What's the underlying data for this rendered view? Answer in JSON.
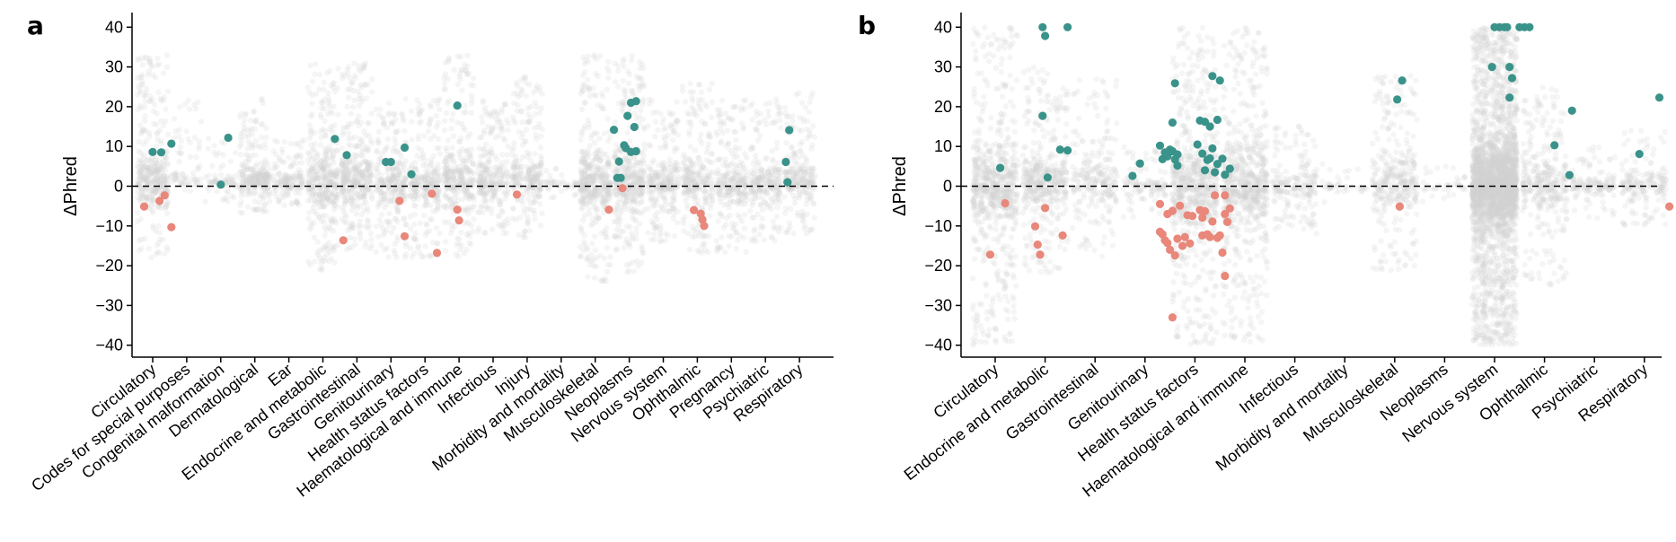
{
  "colors": {
    "background_points": "#d0d0d0",
    "positive": "#3a938a",
    "negative": "#e8877a",
    "zero_line": "#000000"
  },
  "chart_data": [
    {
      "panel": "a",
      "type": "scatter",
      "ylabel": "ΔPhred",
      "ylim": [
        -43,
        43
      ],
      "yticks": [
        -40,
        -30,
        -20,
        -10,
        0,
        10,
        20,
        30,
        40
      ],
      "zero_line": "dashed",
      "categories": [
        "Circulatory",
        "Codes for special purposes",
        "Congenital malformation",
        "Dermatological",
        "Ear",
        "Endocrine and metabolic",
        "Gastrointestinal",
        "Genitourinary",
        "Health status factors",
        "Haematological and immune",
        "Infectious",
        "Injury",
        "Morbidity and mortality",
        "Musculoskeletal",
        "Neoplasms",
        "Nervous system",
        "Ophthalmic",
        "Pregnancy",
        "Psychiatric",
        "Respiratory"
      ],
      "background_spread": [
        [
          -18,
          33
        ],
        [
          -3,
          22
        ],
        [
          -4,
          12
        ],
        [
          -7,
          22
        ],
        [
          -5,
          12
        ],
        [
          -22,
          31
        ],
        [
          -16,
          31
        ],
        [
          -18,
          22
        ],
        [
          -18,
          22
        ],
        [
          -18,
          33
        ],
        [
          -12,
          22
        ],
        [
          -13,
          28
        ],
        [
          -3,
          6
        ],
        [
          -24,
          33
        ],
        [
          -22,
          33
        ],
        [
          -14,
          22
        ],
        [
          -17,
          26
        ],
        [
          -17,
          22
        ],
        [
          -14,
          22
        ],
        [
          -12,
          24
        ]
      ],
      "background_density": [
        380,
        70,
        70,
        260,
        150,
        380,
        380,
        260,
        260,
        320,
        260,
        260,
        40,
        420,
        380,
        260,
        260,
        260,
        240,
        240
      ],
      "positive_points": [
        [
          0,
          8.6
        ],
        [
          0.25,
          8.5
        ],
        [
          0.55,
          10.7
        ],
        [
          2,
          0.4
        ],
        [
          2.22,
          12.2
        ],
        [
          5.35,
          11.9
        ],
        [
          5.7,
          7.8
        ],
        [
          6.85,
          6.1
        ],
        [
          7.0,
          6.1
        ],
        [
          7.4,
          9.7
        ],
        [
          7.6,
          3.0
        ],
        [
          8.95,
          20.3
        ],
        [
          13.55,
          14.2
        ],
        [
          13.65,
          2.1
        ],
        [
          13.75,
          2.1
        ],
        [
          13.7,
          6.2
        ],
        [
          13.85,
          10.3
        ],
        [
          13.9,
          9.6
        ],
        [
          13.95,
          17.7
        ],
        [
          14.05,
          21.0
        ],
        [
          14.05,
          8.6
        ],
        [
          14.2,
          21.4
        ],
        [
          14.15,
          14.9
        ],
        [
          14.2,
          8.8
        ],
        [
          18.7,
          14.1
        ],
        [
          18.6,
          6.1
        ],
        [
          18.65,
          1.0
        ]
      ],
      "negative_points": [
        [
          -0.25,
          -5.1
        ],
        [
          0.2,
          -3.7
        ],
        [
          0.35,
          -2.3
        ],
        [
          0.55,
          -10.3
        ],
        [
          5.6,
          -13.6
        ],
        [
          7.25,
          -3.7
        ],
        [
          7.4,
          -12.6
        ],
        [
          8.2,
          -1.9
        ],
        [
          8.35,
          -16.8
        ],
        [
          8.95,
          -5.9
        ],
        [
          9.0,
          -8.6
        ],
        [
          10.7,
          -2.1
        ],
        [
          13.4,
          -5.9
        ],
        [
          13.8,
          -0.5
        ],
        [
          15.9,
          -6.0
        ],
        [
          16.1,
          -6.9
        ],
        [
          16.15,
          -8.4
        ],
        [
          16.2,
          -10.0
        ]
      ]
    },
    {
      "panel": "b",
      "type": "scatter",
      "ylabel": "ΔPhred",
      "ylim": [
        -43,
        43
      ],
      "yticks": [
        -40,
        -30,
        -20,
        -10,
        0,
        10,
        20,
        30,
        40
      ],
      "zero_line": "dashed",
      "categories": [
        "Circulatory",
        "Endocrine and metabolic",
        "Gastrointestinal",
        "Genitourinary",
        "Health status factors",
        "Haematological and immune",
        "Infectious",
        "Morbidity and mortality",
        "Musculoskeletal",
        "Neoplasms",
        "Nervous system",
        "Ophthalmic",
        "Psychiatric",
        "Respiratory"
      ],
      "background_spread": [
        [
          -40,
          40
        ],
        [
          -22,
          30
        ],
        [
          -18,
          27
        ],
        [
          -8,
          10
        ],
        [
          -40,
          40
        ],
        [
          -40,
          40
        ],
        [
          -12,
          15
        ],
        [
          -5,
          6
        ],
        [
          -22,
          28
        ],
        [
          -4,
          5
        ],
        [
          -40,
          40
        ],
        [
          -25,
          25
        ],
        [
          -8,
          10
        ],
        [
          -10,
          14
        ]
      ],
      "background_density": [
        700,
        450,
        250,
        120,
        700,
        700,
        200,
        40,
        350,
        40,
        2800,
        350,
        140,
        180
      ],
      "positive_points": [
        [
          0.1,
          4.6
        ],
        [
          0.95,
          40
        ],
        [
          1.0,
          37.8
        ],
        [
          0.95,
          17.7
        ],
        [
          1.05,
          2.2
        ],
        [
          1.3,
          9.2
        ],
        [
          1.45,
          9.0
        ],
        [
          1.45,
          40
        ],
        [
          2.75,
          2.6
        ],
        [
          2.9,
          5.7
        ],
        [
          3.3,
          10.2
        ],
        [
          3.35,
          6.8
        ],
        [
          3.4,
          8.5
        ],
        [
          3.45,
          7.5
        ],
        [
          3.5,
          9.2
        ],
        [
          3.55,
          8.8
        ],
        [
          3.6,
          6.7
        ],
        [
          3.6,
          25.9
        ],
        [
          3.55,
          16.0
        ],
        [
          3.65,
          5.2
        ],
        [
          3.65,
          8.0
        ],
        [
          4.05,
          10.5
        ],
        [
          4.1,
          16.5
        ],
        [
          4.15,
          8.2
        ],
        [
          4.2,
          16.2
        ],
        [
          4.2,
          4.0
        ],
        [
          4.25,
          6.6
        ],
        [
          4.3,
          15.0
        ],
        [
          4.3,
          7.0
        ],
        [
          4.35,
          27.7
        ],
        [
          4.35,
          9.5
        ],
        [
          4.4,
          3.5
        ],
        [
          4.45,
          16.7
        ],
        [
          4.45,
          5.6
        ],
        [
          4.5,
          26.6
        ],
        [
          4.55,
          6.9
        ],
        [
          4.6,
          2.9
        ],
        [
          4.7,
          4.4
        ],
        [
          8.05,
          21.8
        ],
        [
          8.15,
          26.6
        ],
        [
          9.95,
          30
        ],
        [
          10.0,
          40
        ],
        [
          10.1,
          40
        ],
        [
          10.2,
          40
        ],
        [
          10.25,
          40
        ],
        [
          10.3,
          30
        ],
        [
          10.35,
          27.2
        ],
        [
          10.3,
          22.3
        ],
        [
          10.5,
          40
        ],
        [
          10.6,
          40
        ],
        [
          10.7,
          40
        ],
        [
          11.2,
          10.3
        ],
        [
          11.5,
          2.8
        ],
        [
          11.55,
          19.0
        ],
        [
          12.9,
          8.1
        ],
        [
          13.3,
          22.3
        ]
      ],
      "negative_points": [
        [
          -0.1,
          -17.2
        ],
        [
          0.2,
          -4.3
        ],
        [
          0.8,
          -10.1
        ],
        [
          0.85,
          -14.7
        ],
        [
          0.9,
          -17.2
        ],
        [
          1.0,
          -5.5
        ],
        [
          1.35,
          -12.4
        ],
        [
          3.3,
          -4.5
        ],
        [
          3.3,
          -11.5
        ],
        [
          3.35,
          -12.1
        ],
        [
          3.4,
          -13.6
        ],
        [
          3.45,
          -7.0
        ],
        [
          3.45,
          -14.3
        ],
        [
          3.5,
          -16.0
        ],
        [
          3.55,
          -6.2
        ],
        [
          3.6,
          -17.4
        ],
        [
          3.55,
          -33.0
        ],
        [
          3.65,
          -13.2
        ],
        [
          3.7,
          -4.9
        ],
        [
          3.75,
          -15.0
        ],
        [
          3.8,
          -12.8
        ],
        [
          3.85,
          -7.3
        ],
        [
          3.9,
          -14.4
        ],
        [
          3.95,
          -7.5
        ],
        [
          4.1,
          -6.0
        ],
        [
          4.15,
          -12.4
        ],
        [
          4.15,
          -7.9
        ],
        [
          4.2,
          -6.3
        ],
        [
          4.25,
          -12.1
        ],
        [
          4.3,
          -12.8
        ],
        [
          4.35,
          -8.9
        ],
        [
          4.4,
          -2.3
        ],
        [
          4.45,
          -13.0
        ],
        [
          4.5,
          -12.4
        ],
        [
          4.55,
          -16.7
        ],
        [
          4.6,
          -22.6
        ],
        [
          4.6,
          -7.0
        ],
        [
          4.6,
          -2.3
        ],
        [
          4.65,
          -9.0
        ],
        [
          4.7,
          -5.6
        ],
        [
          8.1,
          -5.1
        ],
        [
          13.5,
          -5.1
        ]
      ]
    }
  ]
}
